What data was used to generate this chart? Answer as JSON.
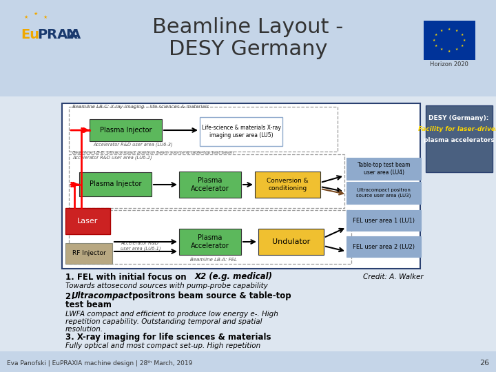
{
  "title_line1": "Beamline Layout -",
  "title_line2": "DESY Germany",
  "bg_light": "#c5d5e8",
  "bg_content": "#dde6f0",
  "footer_text": "Eva Panofski | EuPRAXIA machine design | 28ᵗʰ March, 2019",
  "footer_page": "26",
  "credit": "Credit: A. Walker",
  "desy_box_color": "#4a6080",
  "desy_title": "DESY (Germany):",
  "desy_line2": "Facility for laser-driven",
  "desy_line3": "plasma accelerators",
  "beamline_lbc_label": "Beamline LB-C: X-ray imaging – life sciences & materials",
  "beamline_lbb_label": "Beamline LB-B: Ultracompact positron beam source & table-top test beam",
  "beamline_lba_label": "Beamline LB-A: FEL",
  "acc_rd_lu63": "Accelerator R&D user area (LU6-3)",
  "acc_rd_lu62": "Accelerator R&D user area (LU6-2)",
  "acc_rd_lu61": "Accelerator R&D\nuser area (LU6-1)",
  "green": "#5cb85c",
  "yellow": "#f0c030",
  "red_laser": "#cc2222",
  "tan": "#b8a882",
  "blue_right": "#8faacc",
  "desy_dark": "#4a6080"
}
